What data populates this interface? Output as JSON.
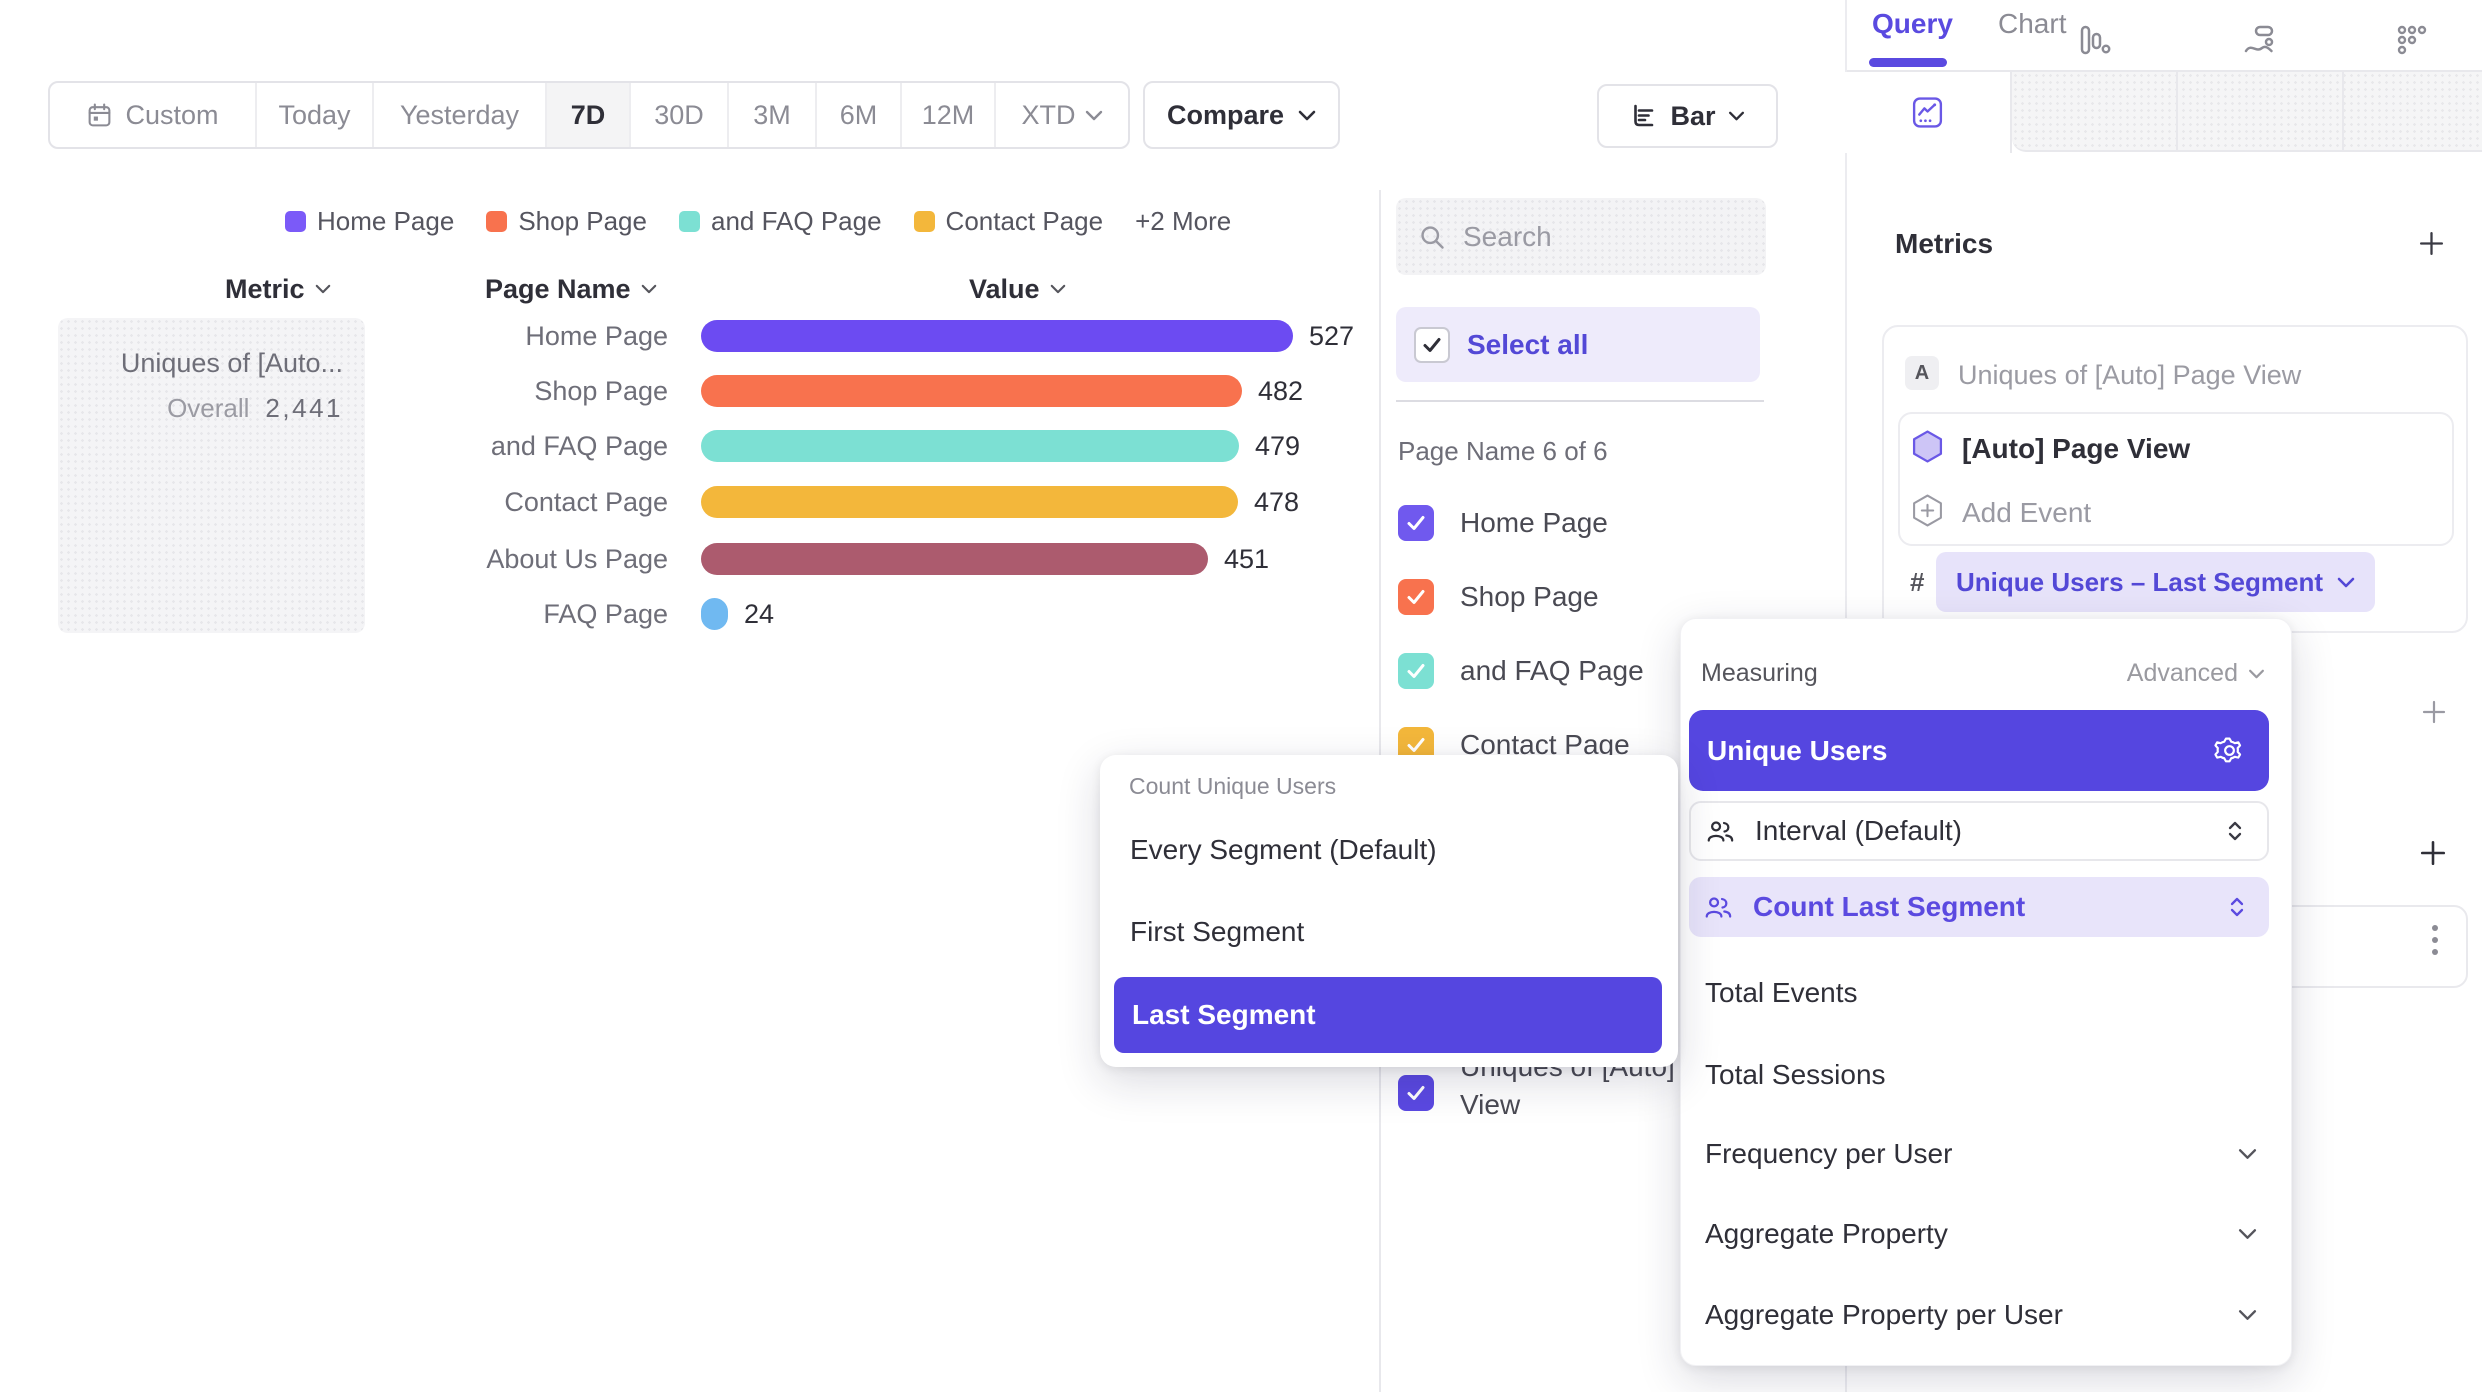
{
  "toolbar": {
    "date_ranges": [
      {
        "label": "Custom"
      },
      {
        "label": "Today"
      },
      {
        "label": "Yesterday"
      },
      {
        "label": "7D"
      },
      {
        "label": "30D"
      },
      {
        "label": "3M"
      },
      {
        "label": "6M"
      },
      {
        "label": "12M"
      },
      {
        "label": "XTD"
      }
    ],
    "selected_range": "7D",
    "compare_label": "Compare",
    "chart_type_label": "Bar"
  },
  "legend": {
    "items": [
      {
        "label": "Home Page",
        "color": "#7B5AF8"
      },
      {
        "label": "Shop Page",
        "color": "#F8724E"
      },
      {
        "label": "and FAQ Page",
        "color": "#7CE0D3"
      },
      {
        "label": "Contact Page",
        "color": "#F3B73B"
      }
    ],
    "more_label": "+2 More"
  },
  "table": {
    "columns": [
      "Metric",
      "Page Name",
      "Value"
    ],
    "metric_card": {
      "title": "Uniques of [Auto...",
      "overall_label": "Overall",
      "overall_value": "2,441"
    }
  },
  "chart_data": {
    "type": "bar",
    "orientation": "horizontal",
    "categories": [
      "Home Page",
      "Shop Page",
      "and FAQ Page",
      "Contact Page",
      "About Us Page",
      "FAQ Page"
    ],
    "values": [
      527,
      482,
      479,
      478,
      451,
      24
    ],
    "colors": [
      "#6C4BF2",
      "#F8724E",
      "#7CE0D3",
      "#F3B73B",
      "#AC5B6E",
      "#70B9F1"
    ],
    "value_labels_shown": true,
    "xlim": [
      0,
      560
    ],
    "legend_position": "top",
    "overall_total": "2,441"
  },
  "filter_panel": {
    "search_placeholder": "Search",
    "select_all_label": "Select all",
    "group_label": "Page Name 6 of 6",
    "items": [
      {
        "label": "Home Page",
        "color": "#7059EE",
        "checked": true
      },
      {
        "label": "Shop Page",
        "color": "#F8724E",
        "checked": true
      },
      {
        "label": "and FAQ Page",
        "color": "#7CE0D3",
        "checked": true
      },
      {
        "label": "Contact Page",
        "color": "#F3B73B",
        "checked": true
      }
    ],
    "bottom_item": {
      "label": "Uniques of [Auto] Page View",
      "color": "#5B49E2",
      "checked": true
    }
  },
  "query_panel": {
    "tabs": [
      {
        "label": "Query",
        "active": true
      },
      {
        "label": "Chart",
        "active": false
      }
    ],
    "metrics_title": "Metrics",
    "metric": {
      "badge": "A",
      "title": "Uniques of [Auto] Page View",
      "event_name": "[Auto] Page View",
      "add_event_label": "Add Event",
      "hash_symbol": "#",
      "measure_pill": "Unique Users – Last Segment"
    }
  },
  "measuring_dropdown": {
    "title": "Measuring",
    "advanced_label": "Advanced",
    "selected_measure": "Unique Users",
    "param_rows": [
      {
        "label": "Interval (Default)",
        "active": false
      },
      {
        "label": "Count Last Segment",
        "active": true
      }
    ],
    "options": [
      {
        "label": "Total Events",
        "expandable": false
      },
      {
        "label": "Total Sessions",
        "expandable": false
      },
      {
        "label": "Frequency per User",
        "expandable": true
      },
      {
        "label": "Aggregate Property",
        "expandable": true
      },
      {
        "label": "Aggregate Property per User",
        "expandable": true
      }
    ]
  },
  "segment_popup": {
    "title": "Count Unique Users",
    "options": [
      "Every Segment (Default)",
      "First Segment",
      "Last Segment"
    ],
    "selected": "Last Segment"
  },
  "colors": {
    "accent": "#5546E0",
    "accent_text": "#5348D6",
    "accent_light_bg": "#E8E4FA",
    "select_all_bg": "#EEEBFB"
  }
}
